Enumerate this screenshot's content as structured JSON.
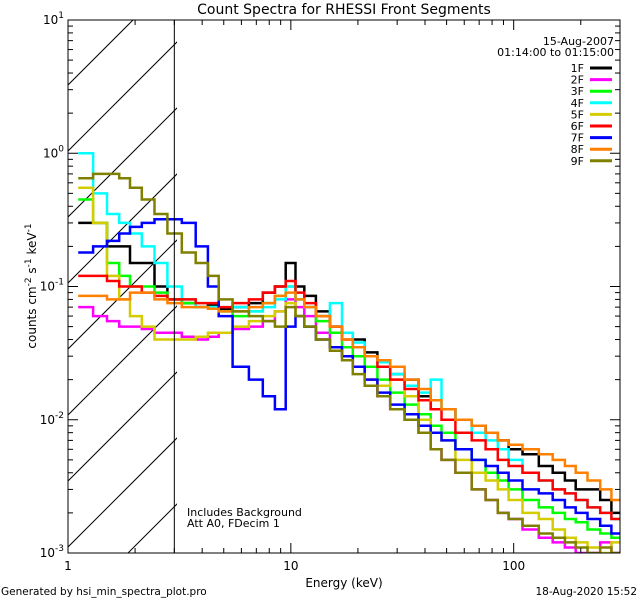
{
  "chart_data": {
    "type": "line",
    "title": "Count Spectra for RHESSI Front Segments",
    "xlabel": "Energy (keV)",
    "ylabel_parts": [
      "counts cm",
      "-2",
      " s",
      "-1",
      " keV",
      "-1"
    ],
    "xscale": "log",
    "yscale": "log",
    "xlim": [
      1,
      300
    ],
    "ylim": [
      0.001,
      10
    ],
    "x_ticks": [
      {
        "v": 1,
        "label": "1"
      },
      {
        "v": 10,
        "label": "10"
      },
      {
        "v": 100,
        "label": "100"
      }
    ],
    "y_ticks": [
      {
        "v": 10,
        "base": "10",
        "exp": "1"
      },
      {
        "v": 1,
        "base": "10",
        "exp": "0"
      },
      {
        "v": 0.1,
        "base": "10",
        "exp": "-1"
      },
      {
        "v": 0.01,
        "base": "10",
        "exp": "-2"
      },
      {
        "v": 0.001,
        "base": "10",
        "exp": "-3"
      }
    ],
    "shaded_region": [
      1,
      3
    ],
    "date": "15-Aug-2007",
    "time_range": "01:14:00 to 01:15:00",
    "annotations": [
      "Includes Background",
      "Att A0, FDecim 1"
    ],
    "legend_placement": "top-right",
    "energy": [
      1.2,
      1.4,
      1.6,
      1.8,
      2.0,
      2.3,
      2.6,
      3,
      3.5,
      4,
      4.5,
      5,
      6,
      7,
      8,
      9,
      10,
      11,
      12,
      14,
      16,
      18,
      20,
      23,
      26,
      30,
      35,
      40,
      45,
      50,
      60,
      70,
      80,
      90,
      100,
      120,
      140,
      160,
      180,
      200,
      230,
      260,
      290
    ],
    "series": [
      {
        "name": "1F",
        "color": "#000000",
        "values": [
          0.3,
          0.3,
          0.2,
          0.2,
          0.15,
          0.15,
          0.1,
          0.08,
          0.075,
          0.07,
          0.072,
          0.068,
          0.07,
          0.075,
          0.09,
          0.1,
          0.15,
          0.1,
          0.085,
          0.065,
          0.05,
          0.045,
          0.04,
          0.032,
          0.028,
          0.022,
          0.02,
          0.015,
          0.012,
          0.012,
          0.01,
          0.009,
          0.008,
          0.007,
          0.006,
          0.0055,
          0.0045,
          0.004,
          0.0035,
          0.003,
          0.003,
          0.0025,
          0.002
        ]
      },
      {
        "name": "2F",
        "color": "#ff00ff",
        "values": [
          0.07,
          0.06,
          0.055,
          0.05,
          0.05,
          0.048,
          0.045,
          0.045,
          0.042,
          0.04,
          0.042,
          0.045,
          0.048,
          0.05,
          0.055,
          0.065,
          0.08,
          0.07,
          0.06,
          0.045,
          0.035,
          0.03,
          0.025,
          0.02,
          0.015,
          0.012,
          0.01,
          0.008,
          0.006,
          0.005,
          0.004,
          0.003,
          0.0025,
          0.002,
          0.0018,
          0.0015,
          0.0013,
          0.0012,
          0.0011,
          0.001,
          0.001,
          0.0012,
          0.001
        ]
      },
      {
        "name": "3F",
        "color": "#00ff00",
        "values": [
          0.45,
          0.3,
          0.15,
          0.12,
          0.1,
          0.1,
          0.09,
          0.08,
          0.075,
          0.07,
          0.07,
          0.065,
          0.06,
          0.065,
          0.075,
          0.085,
          0.1,
          0.08,
          0.07,
          0.055,
          0.045,
          0.035,
          0.03,
          0.025,
          0.02,
          0.016,
          0.013,
          0.011,
          0.009,
          0.008,
          0.006,
          0.005,
          0.004,
          0.0035,
          0.003,
          0.0025,
          0.0022,
          0.002,
          0.0018,
          0.0017,
          0.0015,
          0.0014,
          0.0013
        ]
      },
      {
        "name": "4F",
        "color": "#00ffff",
        "values": [
          1.0,
          0.5,
          0.35,
          0.3,
          0.25,
          0.2,
          0.15,
          0.1,
          0.08,
          0.07,
          0.07,
          0.065,
          0.07,
          0.065,
          0.07,
          0.08,
          0.1,
          0.08,
          0.07,
          0.06,
          0.075,
          0.045,
          0.038,
          0.03,
          0.027,
          0.022,
          0.018,
          0.016,
          0.02,
          0.012,
          0.01,
          0.008,
          0.007,
          0.006,
          0.005,
          0.004,
          0.0035,
          0.003,
          0.0028,
          0.0025,
          0.0022,
          0.002,
          0.0018
        ]
      },
      {
        "name": "5F",
        "color": "#d4cc00",
        "values": [
          0.55,
          0.3,
          0.12,
          0.08,
          0.06,
          0.05,
          0.04,
          0.04,
          0.04,
          0.042,
          0.045,
          0.045,
          0.05,
          0.055,
          0.06,
          0.065,
          0.075,
          0.06,
          0.05,
          0.04,
          0.035,
          0.03,
          0.025,
          0.02,
          0.018,
          0.02,
          0.015,
          0.01,
          0.008,
          0.007,
          0.005,
          0.004,
          0.0035,
          0.003,
          0.0025,
          0.002,
          0.0018,
          0.0015,
          0.0013,
          0.0012,
          0.0011,
          0.001,
          0.0012
        ]
      },
      {
        "name": "6F",
        "color": "#ff0000",
        "values": [
          0.12,
          0.12,
          0.11,
          0.1,
          0.1,
          0.09,
          0.085,
          0.08,
          0.08,
          0.075,
          0.075,
          0.07,
          0.075,
          0.08,
          0.09,
          0.1,
          0.11,
          0.09,
          0.075,
          0.06,
          0.05,
          0.04,
          0.035,
          0.03,
          0.025,
          0.02,
          0.017,
          0.014,
          0.012,
          0.01,
          0.008,
          0.007,
          0.006,
          0.005,
          0.0045,
          0.004,
          0.0035,
          0.003,
          0.0028,
          0.0025,
          0.0022,
          0.002,
          0.0018
        ]
      },
      {
        "name": "7F",
        "color": "#0000ff",
        "values": [
          0.18,
          0.2,
          0.22,
          0.25,
          0.28,
          0.3,
          0.32,
          0.32,
          0.3,
          0.2,
          0.1,
          0.06,
          0.025,
          0.02,
          0.015,
          0.012,
          0.05,
          0.06,
          0.05,
          0.04,
          0.035,
          0.03,
          0.025,
          0.02,
          0.016,
          0.013,
          0.011,
          0.009,
          0.008,
          0.007,
          0.006,
          0.005,
          0.0045,
          0.004,
          0.0035,
          0.003,
          0.0028,
          0.0025,
          0.0022,
          0.002,
          0.0018,
          0.0016,
          0.0014
        ]
      },
      {
        "name": "8F",
        "color": "#ff8000",
        "values": [
          0.085,
          0.085,
          0.08,
          0.08,
          0.09,
          0.09,
          0.08,
          0.075,
          0.07,
          0.07,
          0.068,
          0.065,
          0.065,
          0.07,
          0.075,
          0.085,
          0.09,
          0.08,
          0.07,
          0.06,
          0.05,
          0.04,
          0.035,
          0.03,
          0.028,
          0.025,
          0.02,
          0.017,
          0.014,
          0.012,
          0.01,
          0.009,
          0.008,
          0.007,
          0.0065,
          0.006,
          0.0055,
          0.005,
          0.0045,
          0.004,
          0.0035,
          0.003,
          0.0025
        ]
      },
      {
        "name": "9F",
        "color": "#808000",
        "values": [
          0.65,
          0.7,
          0.7,
          0.65,
          0.55,
          0.45,
          0.35,
          0.25,
          0.18,
          0.15,
          0.12,
          0.08,
          0.065,
          0.06,
          0.055,
          0.05,
          0.07,
          0.06,
          0.05,
          0.04,
          0.033,
          0.028,
          0.022,
          0.018,
          0.015,
          0.012,
          0.01,
          0.008,
          0.006,
          0.005,
          0.004,
          0.003,
          0.0025,
          0.002,
          0.0018,
          0.0016,
          0.0014,
          0.0013,
          0.0012,
          0.0011,
          0.001,
          0.0011,
          0.001
        ]
      }
    ]
  },
  "footer": {
    "generated_by": "Generated by hsi_min_spectra_plot.pro",
    "timestamp": "18-Aug-2020 15:52"
  }
}
